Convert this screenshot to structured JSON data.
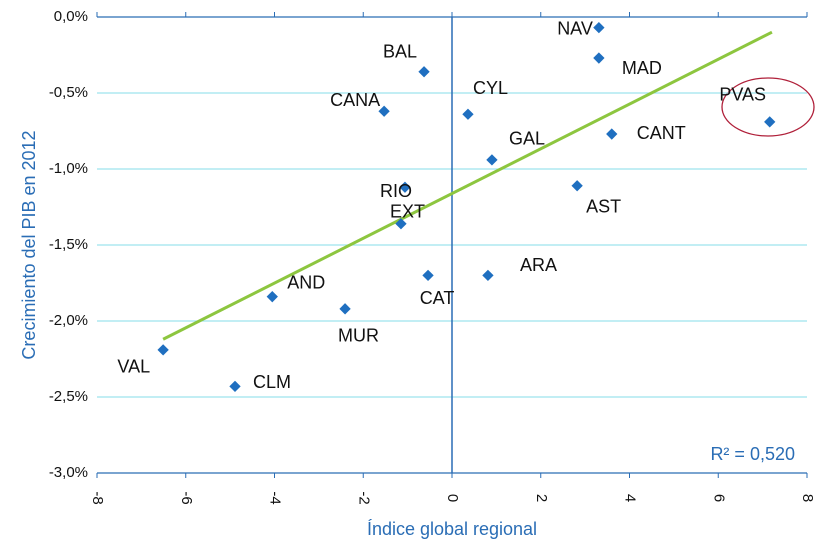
{
  "chart_data": {
    "type": "scatter",
    "x_label": "Índice global regional",
    "y_label": "Crecimiento del PIB en 2012",
    "annotation": "R² = 0,520",
    "color": "#1f6fc0",
    "trend_color": "#8dc63f",
    "names": [
      "NAV",
      "MAD",
      "BAL",
      "CANA",
      "CYL",
      "PVAS",
      "CANT",
      "GAL",
      "RIO",
      "AST",
      "EXT",
      "CAT",
      "ARA",
      "AND",
      "MUR",
      "VAL",
      "CLM"
    ],
    "x": [
      3.31,
      3.31,
      -0.63,
      -1.53,
      0.36,
      7.16,
      3.6,
      0.9,
      -1.06,
      2.82,
      -1.15,
      -0.54,
      0.81,
      -4.05,
      -2.41,
      -6.51,
      -4.89
    ],
    "y": [
      -0.07,
      -0.27,
      -0.36,
      -0.62,
      -0.64,
      -0.69,
      -0.77,
      -0.94,
      -1.12,
      -1.11,
      -1.36,
      -1.7,
      -1.7,
      -1.84,
      -1.92,
      -2.19,
      -2.43
    ],
    "trendline": {
      "x": [
        -6.51,
        7.21
      ],
      "y": [
        -2.12,
        -0.1
      ]
    },
    "xlim": [
      -8,
      8
    ],
    "xticks": [
      -8,
      -6,
      -4,
      -2,
      0,
      2,
      4,
      6,
      8
    ],
    "ylim": [
      -3.0,
      0.0
    ],
    "yticks": [
      {
        "value": 0.0,
        "label": "0,0%"
      },
      {
        "value": -0.5,
        "label": "-0,5%"
      },
      {
        "value": -1.0,
        "label": "-1,0%"
      },
      {
        "value": -1.5,
        "label": "-1,5%"
      },
      {
        "value": -2.0,
        "label": "-2,0%"
      },
      {
        "value": -2.5,
        "label": "-2,5%"
      },
      {
        "value": -3.0,
        "label": "-3,0%"
      }
    ],
    "grid": true
  }
}
